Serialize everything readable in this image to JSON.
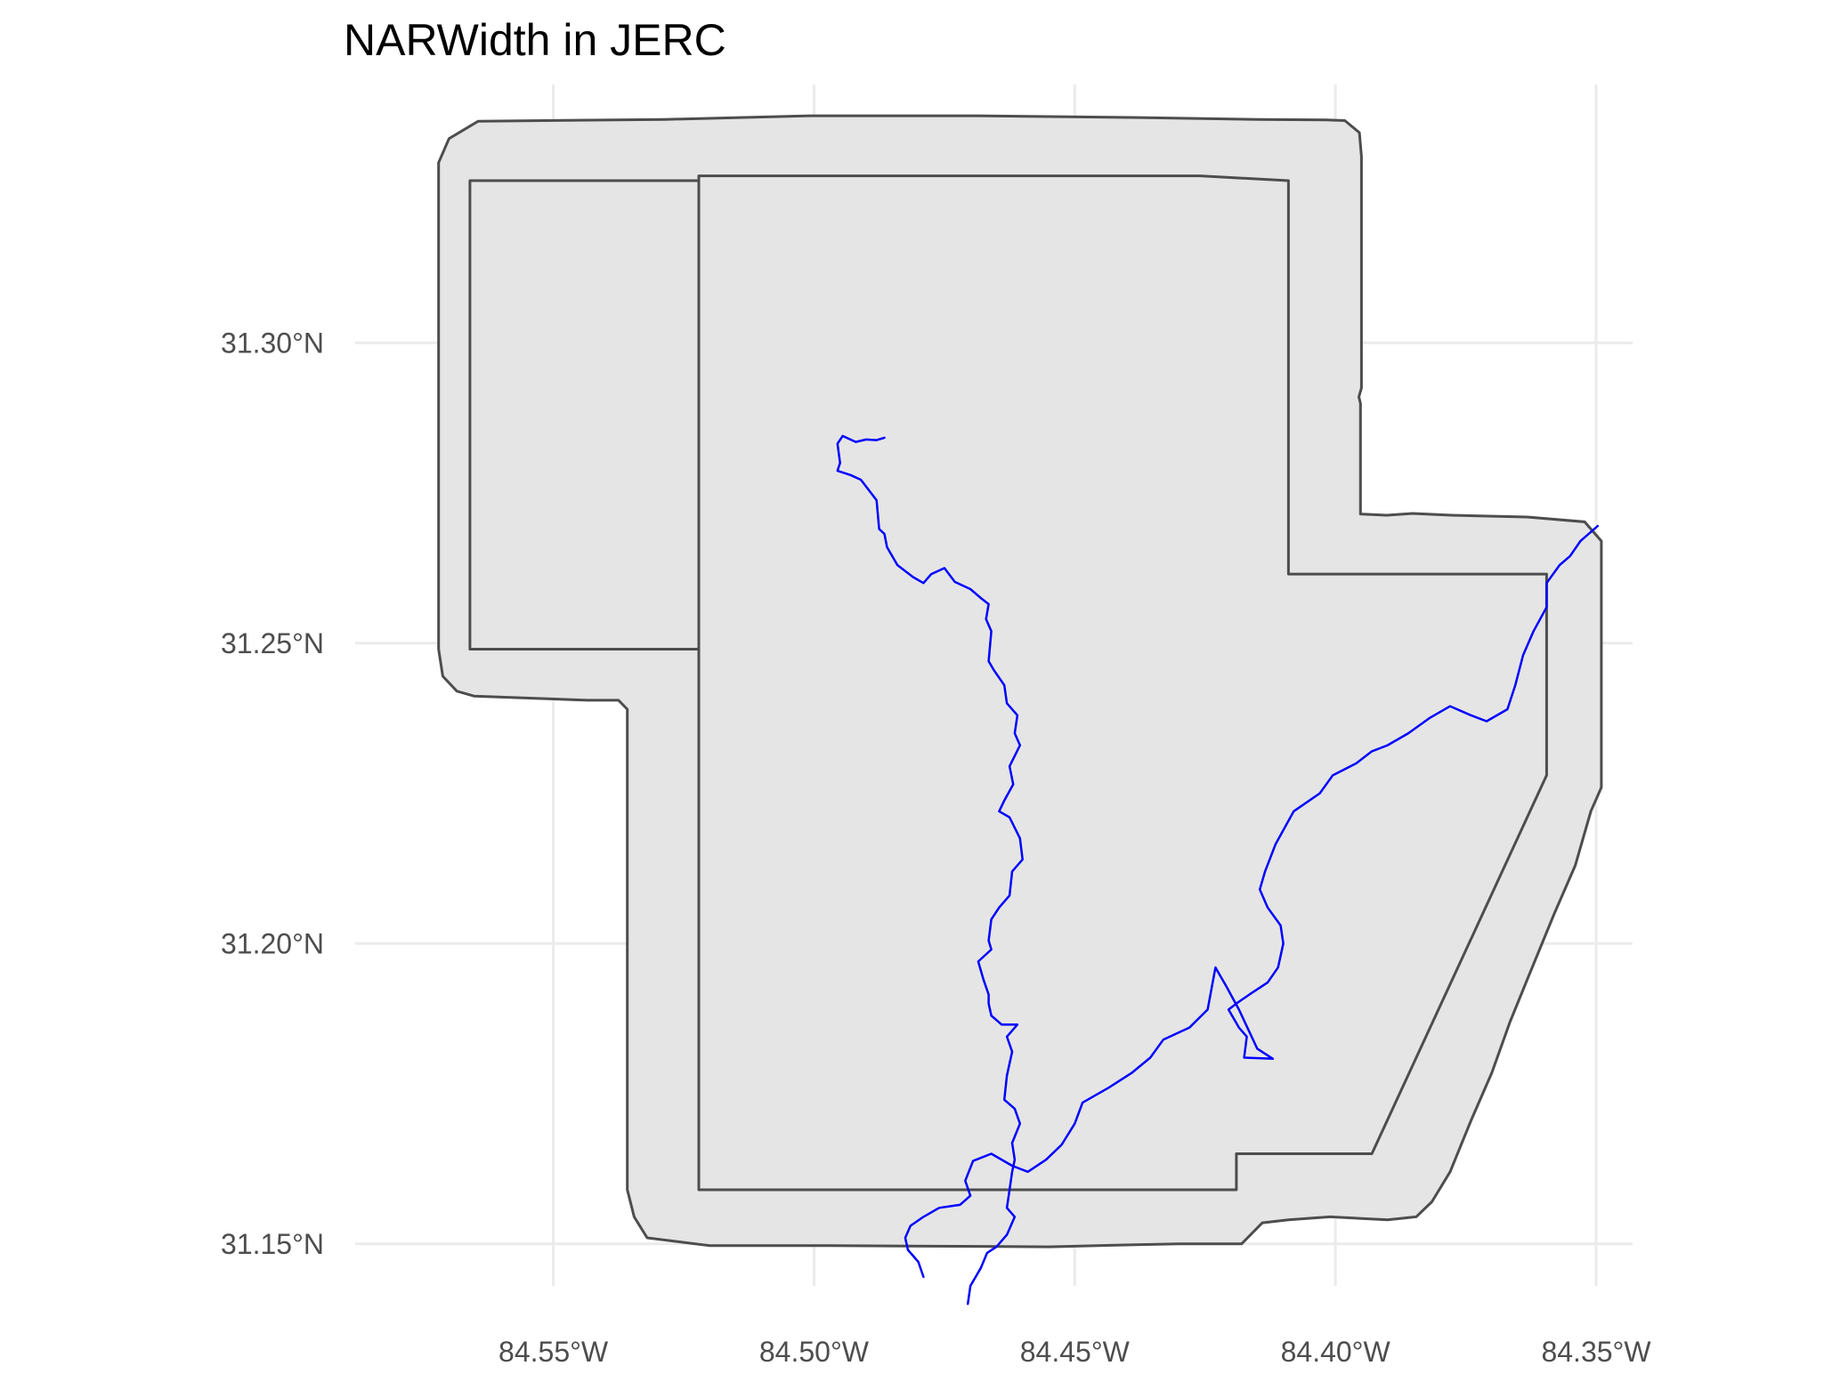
{
  "chart_data": {
    "type": "map",
    "title": "NARWidth in JERC",
    "xlabel": "",
    "ylabel": "",
    "x_ticks": [
      {
        "value": -84.55,
        "label": "84.55°W"
      },
      {
        "value": -84.5,
        "label": "84.50°W"
      },
      {
        "value": -84.45,
        "label": "84.45°W"
      },
      {
        "value": -84.4,
        "label": "84.40°W"
      },
      {
        "value": -84.35,
        "label": "84.35°W"
      }
    ],
    "y_ticks": [
      {
        "value": 31.15,
        "label": "31.15°N"
      },
      {
        "value": 31.2,
        "label": "31.20°N"
      },
      {
        "value": 31.25,
        "label": "31.25°N"
      },
      {
        "value": 31.3,
        "label": "31.30°N"
      }
    ],
    "xlim": [
      -84.588,
      -84.343
    ],
    "ylim": [
      31.143,
      31.343
    ],
    "grid": true,
    "colors": {
      "buffer_fill": "#e5e5e5",
      "outline": "#4d4d4d",
      "river": "#0000ff",
      "grid": "#ebebeb"
    },
    "layers": [
      {
        "name": "buffer",
        "kind": "polygon",
        "coords": [
          [
            -84.5644,
            31.3369
          ],
          [
            -84.5286,
            31.3372
          ],
          [
            -84.5007,
            31.3378
          ],
          [
            -84.4688,
            31.3378
          ],
          [
            -84.4375,
            31.3375
          ],
          [
            -84.4149,
            31.3372
          ],
          [
            -84.4018,
            31.3371
          ],
          [
            -84.3982,
            31.337
          ],
          [
            -84.3954,
            31.335
          ],
          [
            -84.395,
            31.331
          ],
          [
            -84.395,
            31.2925
          ],
          [
            -84.3955,
            31.291
          ],
          [
            -84.3952,
            31.2899
          ],
          [
            -84.3952,
            31.2715
          ],
          [
            -84.3902,
            31.2713
          ],
          [
            -84.3852,
            31.2716
          ],
          [
            -84.3777,
            31.2713
          ],
          [
            -84.3632,
            31.271
          ],
          [
            -84.3522,
            31.2702
          ],
          [
            -84.349,
            31.267
          ],
          [
            -84.349,
            31.226
          ],
          [
            -84.351,
            31.222
          ],
          [
            -84.354,
            31.213
          ],
          [
            -84.358,
            31.205
          ],
          [
            -84.3625,
            31.1955
          ],
          [
            -84.3665,
            31.187
          ],
          [
            -84.37,
            31.1785
          ],
          [
            -84.374,
            31.1705
          ],
          [
            -84.378,
            31.162
          ],
          [
            -84.3815,
            31.157
          ],
          [
            -84.3845,
            31.1545
          ],
          [
            -84.39,
            31.154
          ],
          [
            -84.401,
            31.1545
          ],
          [
            -84.409,
            31.154
          ],
          [
            -84.414,
            31.1535
          ],
          [
            -84.418,
            31.15
          ],
          [
            -84.43,
            31.15
          ],
          [
            -84.4413,
            31.1498
          ],
          [
            -84.4549,
            31.1495
          ],
          [
            -84.4721,
            31.1496
          ],
          [
            -84.497,
            31.1497
          ],
          [
            -84.52,
            31.1497
          ],
          [
            -84.532,
            31.151
          ],
          [
            -84.5345,
            31.1545
          ],
          [
            -84.5358,
            31.159
          ],
          [
            -84.5358,
            31.239
          ],
          [
            -84.5375,
            31.2405
          ],
          [
            -84.5435,
            31.2405
          ],
          [
            -84.5652,
            31.2412
          ],
          [
            -84.5685,
            31.242
          ],
          [
            -84.5712,
            31.2445
          ],
          [
            -84.572,
            31.249
          ],
          [
            -84.572,
            31.33
          ],
          [
            -84.57,
            31.334
          ],
          [
            -84.5644,
            31.3369
          ]
        ]
      },
      {
        "name": "west-tract",
        "kind": "polygon",
        "coords": [
          [
            -84.566,
            31.327
          ],
          [
            -84.5221,
            31.327
          ],
          [
            -84.5221,
            31.249
          ],
          [
            -84.566,
            31.249
          ],
          [
            -84.566,
            31.327
          ]
        ]
      },
      {
        "name": "main-tract",
        "kind": "polygon",
        "coords": [
          [
            -84.5221,
            31.3278
          ],
          [
            -84.426,
            31.3278
          ],
          [
            -84.409,
            31.327
          ],
          [
            -84.409,
            31.2615
          ],
          [
            -84.3595,
            31.2615
          ],
          [
            -84.3595,
            31.228
          ],
          [
            -84.393,
            31.165
          ],
          [
            -84.419,
            31.165
          ],
          [
            -84.419,
            31.159
          ],
          [
            -84.5221,
            31.159
          ],
          [
            -84.5221,
            31.3278
          ]
        ]
      },
      {
        "name": "river-north",
        "kind": "line",
        "coords": [
          [
            -84.4865,
            31.2842
          ],
          [
            -84.488,
            31.2838
          ],
          [
            -84.49,
            31.2839
          ],
          [
            -84.492,
            31.2835
          ],
          [
            -84.4945,
            31.2845
          ],
          [
            -84.4955,
            31.2832
          ],
          [
            -84.495,
            31.28
          ],
          [
            -84.4955,
            31.2787
          ],
          [
            -84.493,
            31.278
          ],
          [
            -84.491,
            31.2772
          ],
          [
            -84.488,
            31.2738
          ],
          [
            -84.4875,
            31.269
          ],
          [
            -84.4865,
            31.2682
          ],
          [
            -84.486,
            31.266
          ],
          [
            -84.484,
            31.263
          ],
          [
            -84.481,
            31.261
          ],
          [
            -84.479,
            31.26
          ],
          [
            -84.4775,
            31.2615
          ],
          [
            -84.475,
            31.2625
          ],
          [
            -84.473,
            31.2602
          ],
          [
            -84.47,
            31.259
          ],
          [
            -84.468,
            31.2575
          ],
          [
            -84.4665,
            31.2565
          ],
          [
            -84.467,
            31.254
          ],
          [
            -84.466,
            31.252
          ],
          [
            -84.4665,
            31.247
          ],
          [
            -84.4655,
            31.2455
          ],
          [
            -84.4635,
            31.243
          ],
          [
            -84.463,
            31.24
          ],
          [
            -84.461,
            31.238
          ],
          [
            -84.4615,
            31.235
          ],
          [
            -84.4605,
            31.233
          ],
          [
            -84.4625,
            31.2295
          ],
          [
            -84.4618,
            31.2265
          ],
          [
            -84.4635,
            31.2238
          ],
          [
            -84.4645,
            31.222
          ],
          [
            -84.4625,
            31.221
          ],
          [
            -84.4605,
            31.2175
          ],
          [
            -84.46,
            31.214
          ],
          [
            -84.462,
            31.212
          ],
          [
            -84.4625,
            31.208
          ],
          [
            -84.4645,
            31.206
          ],
          [
            -84.466,
            31.204
          ],
          [
            -84.4665,
            31.2005
          ],
          [
            -84.466,
            31.199
          ],
          [
            -84.4685,
            31.197
          ],
          [
            -84.4675,
            31.194
          ],
          [
            -84.4665,
            31.1915
          ],
          [
            -84.4665,
            31.19
          ],
          [
            -84.466,
            31.188
          ],
          [
            -84.464,
            31.1865
          ],
          [
            -84.461,
            31.1865
          ],
          [
            -84.463,
            31.1845
          ],
          [
            -84.462,
            31.182
          ],
          [
            -84.463,
            31.178
          ],
          [
            -84.4635,
            31.174
          ],
          [
            -84.4615,
            31.1725
          ],
          [
            -84.4605,
            31.17
          ],
          [
            -84.462,
            31.1668
          ],
          [
            -84.4615,
            31.164
          ],
          [
            -84.462,
            31.162
          ],
          [
            -84.4625,
            31.159
          ],
          [
            -84.463,
            31.156
          ],
          [
            -84.4615,
            31.1545
          ],
          [
            -84.463,
            31.1515
          ],
          [
            -84.465,
            31.1495
          ],
          [
            -84.4668,
            31.1485
          ],
          [
            -84.468,
            31.146
          ],
          [
            -84.47,
            31.143
          ],
          [
            -84.4705,
            31.14
          ]
        ]
      },
      {
        "name": "river-main",
        "kind": "line",
        "coords": [
          [
            -84.3497,
            31.2695
          ],
          [
            -84.353,
            31.267
          ],
          [
            -84.355,
            31.2645
          ],
          [
            -84.357,
            31.263
          ],
          [
            -84.3595,
            31.26
          ],
          [
            -84.3595,
            31.256
          ],
          [
            -84.362,
            31.252
          ],
          [
            -84.364,
            31.248
          ],
          [
            -84.3655,
            31.243
          ],
          [
            -84.367,
            31.239
          ],
          [
            -84.371,
            31.237
          ],
          [
            -84.374,
            31.238
          ],
          [
            -84.378,
            31.2395
          ],
          [
            -84.382,
            31.2375
          ],
          [
            -84.386,
            31.235
          ],
          [
            -84.39,
            31.233
          ],
          [
            -84.393,
            31.232
          ],
          [
            -84.396,
            31.23
          ],
          [
            -84.4005,
            31.228
          ],
          [
            -84.403,
            31.225
          ],
          [
            -84.408,
            31.222
          ],
          [
            -84.4115,
            31.2165
          ],
          [
            -84.4135,
            31.212
          ],
          [
            -84.4145,
            31.209
          ],
          [
            -84.413,
            31.206
          ],
          [
            -84.4105,
            31.203
          ],
          [
            -84.41,
            31.2
          ],
          [
            -84.411,
            31.196
          ],
          [
            -84.413,
            31.1935
          ],
          [
            -84.4165,
            31.1915
          ],
          [
            -84.419,
            31.19
          ],
          [
            -84.4205,
            31.189
          ],
          [
            -84.4185,
            31.186
          ],
          [
            -84.417,
            31.1845
          ],
          [
            -84.4175,
            31.181
          ],
          [
            -84.412,
            31.1808
          ],
          [
            -84.415,
            31.1825
          ],
          [
            -84.4185,
            31.189
          ],
          [
            -84.421,
            31.193
          ],
          [
            -84.423,
            31.196
          ],
          [
            -84.4245,
            31.189
          ],
          [
            -84.428,
            31.186
          ],
          [
            -84.433,
            31.184
          ],
          [
            -84.4355,
            31.181
          ],
          [
            -84.439,
            31.1785
          ],
          [
            -84.4435,
            31.176
          ],
          [
            -84.4485,
            31.1735
          ],
          [
            -84.45,
            31.17
          ],
          [
            -84.4525,
            31.1665
          ],
          [
            -84.4555,
            31.164
          ],
          [
            -84.459,
            31.162
          ],
          [
            -84.462,
            31.163
          ],
          [
            -84.466,
            31.165
          ],
          [
            -84.4695,
            31.1638
          ],
          [
            -84.471,
            31.1605
          ],
          [
            -84.47,
            31.158
          ],
          [
            -84.472,
            31.1565
          ],
          [
            -84.476,
            31.156
          ],
          [
            -84.479,
            31.1545
          ],
          [
            -84.4815,
            31.153
          ],
          [
            -84.4825,
            31.151
          ],
          [
            -84.482,
            31.149
          ],
          [
            -84.48,
            31.147
          ],
          [
            -84.479,
            31.1445
          ]
        ]
      }
    ]
  }
}
